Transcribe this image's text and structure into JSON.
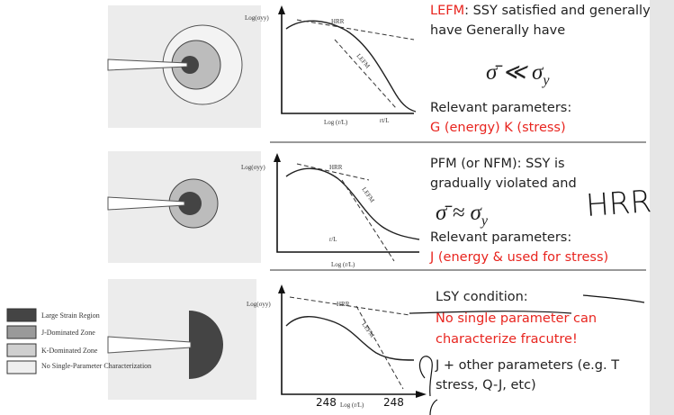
{
  "rows": [
    {
      "lines": [
        [
          "LEFM",
          ": SSY satisfied and generally"
        ],
        [
          "have Generally have"
        ]
      ],
      "formula": {
        "main": "σ̄ ≪ σ",
        "sub": "y"
      },
      "params_label": "Relevant parameters:",
      "params": "G (energy) K (stress)",
      "graph": {
        "y_label": "Log(σyy)",
        "x_label": "Log (r/L)",
        "curve_label": "HRR",
        "line_label": "LEFM",
        "marker": "rt/L"
      }
    },
    {
      "lines": [
        [
          "PFM (or NFM): SSY is"
        ],
        [
          "gradually violated and"
        ]
      ],
      "formula": {
        "main": "σ̄ ≈ σ",
        "sub": "y"
      },
      "params_label": "Relevant parameters:",
      "params": "J (energy & used for stress)",
      "graph": {
        "y_label": "Log(σyy)",
        "x_label": "Log (r/L)",
        "curve_label": "HRR",
        "line_label": "LEFM",
        "marker": "r/L"
      }
    },
    {
      "lines": [
        [
          "LSY condition:"
        ]
      ],
      "red_lines": [
        "No single parameter can",
        "characterize fracutre!"
      ],
      "black_lines": [
        "J + other parameters (e.g. T",
        "stress, Q-J, etc)"
      ],
      "graph": {
        "y_label": "Log(σyy)",
        "x_label": "Log (r/L)",
        "curve_label": "HRR",
        "line_label": "LEFM"
      }
    }
  ],
  "legend": [
    "Large Strain Region",
    "J-Dominated Zone",
    "K-Dominated Zone",
    "No Single-Parameter Characterization"
  ],
  "annotations": {
    "handwritten": "HRR",
    "overlay_left": "248",
    "overlay_right": "248"
  }
}
